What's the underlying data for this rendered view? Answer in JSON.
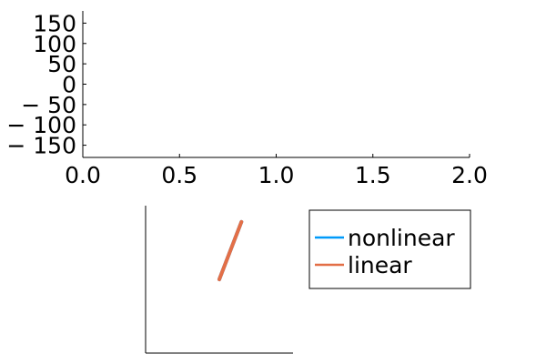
{
  "chart_data": [
    {
      "type": "line",
      "title": "",
      "xlabel": "",
      "ylabel": "",
      "xlim": [
        0,
        2
      ],
      "ylim": [
        -180,
        180
      ],
      "x_ticks": [
        0.0,
        0.5,
        1.0,
        1.5,
        2.0
      ],
      "x_tick_labels": [
        "0.0",
        "0.5",
        "1.0",
        "1.5",
        "2.0"
      ],
      "y_ticks": [
        150,
        100,
        50,
        0,
        -50,
        -100,
        -150
      ],
      "y_tick_labels": [
        "150",
        "100",
        "50",
        "0",
        "− 50",
        "− 100",
        "− 150"
      ],
      "grid": false,
      "series": []
    },
    {
      "type": "line",
      "title": "",
      "xlabel": "",
      "ylabel": "",
      "grid": false,
      "axis_ticks": false,
      "legend_position": "right",
      "xlim": [
        0,
        1
      ],
      "ylim": [
        0,
        1
      ],
      "series": [
        {
          "name": "nonlinear",
          "color": "#009AFA",
          "x": [
            0.5,
            0.65
          ],
          "y": [
            0.5,
            0.89
          ]
        },
        {
          "name": "linear",
          "color": "#E36F47",
          "x": [
            0.5,
            0.65
          ],
          "y": [
            0.5,
            0.89
          ]
        }
      ]
    }
  ]
}
